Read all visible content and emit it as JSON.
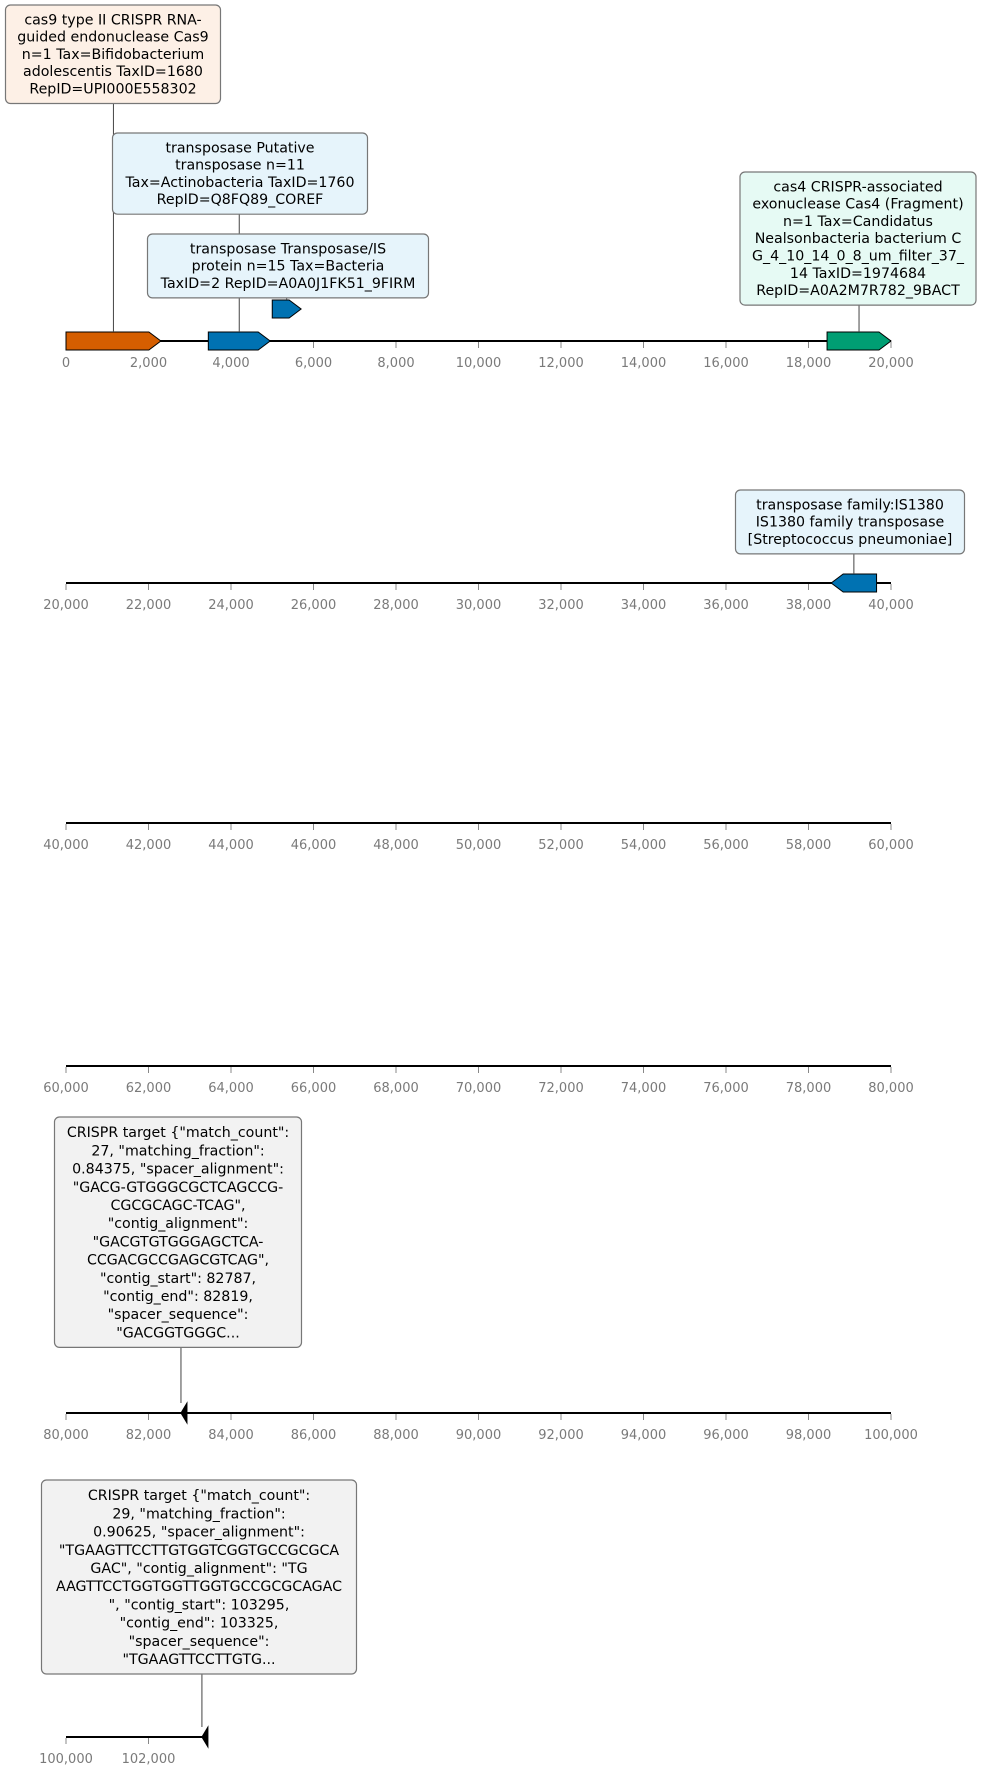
{
  "tracks": [
    {
      "start": 0,
      "end": 20000,
      "ticks": [
        "0",
        "2,000",
        "4,000",
        "6,000",
        "8,000",
        "10,000",
        "12,000",
        "14,000",
        "16,000",
        "18,000",
        "20,000"
      ],
      "features": [
        {
          "id": "cas9",
          "start": 0,
          "end": 2300,
          "strand": "+",
          "color": "#D55E00",
          "label_lines": [
            "cas9 type II CRISPR RNA-",
            "guided endonuclease Cas9",
            "n=1 Tax=Bifidobacterium",
            "adolescentis TaxID=1680",
            "RepID=UPI000E558302"
          ],
          "box_color": "#FDF0E6"
        },
        {
          "id": "transposase-1",
          "start": 3450,
          "end": 4950,
          "strand": "+",
          "color": "#0072B2",
          "label_lines": [
            "transposase Putative",
            "transposase n=11",
            "Tax=Actinobacteria TaxID=1760",
            "RepID=Q8FQ89_COREF"
          ],
          "box_color": "#E6F4FB"
        },
        {
          "id": "transposase-2",
          "start": 5000,
          "end": 5700,
          "strand": "+",
          "color": "#0072B2",
          "raised": true,
          "label_lines": [
            "transposase Transposase/IS",
            "protein n=15 Tax=Bacteria",
            "TaxID=2 RepID=A0A0J1FK51_9FIRM"
          ],
          "box_color": "#E6F4FB"
        },
        {
          "id": "cas4",
          "start": 18450,
          "end": 20000,
          "strand": "+",
          "color": "#009E73",
          "label_lines": [
            "cas4 CRISPR-associated",
            "exonuclease Cas4 (Fragment)",
            "n=1 Tax=Candidatus",
            "Nealsonbacteria bacterium C",
            "G_4_10_14_0_8_um_filter_37_",
            "14 TaxID=1974684",
            "RepID=A0A2M7R782_9BACT"
          ],
          "box_color": "#E6FAF4"
        }
      ]
    },
    {
      "start": 20000,
      "end": 40000,
      "ticks": [
        "20,000",
        "22,000",
        "24,000",
        "26,000",
        "28,000",
        "30,000",
        "32,000",
        "34,000",
        "36,000",
        "38,000",
        "40,000"
      ],
      "features": [
        {
          "id": "transposase-is1380",
          "start": 38550,
          "end": 39650,
          "strand": "-",
          "color": "#0072B2",
          "label_lines": [
            "transposase family:IS1380",
            "IS1380 family transposase",
            "[Streptococcus pneumoniae]"
          ],
          "box_color": "#E6F4FB"
        }
      ]
    },
    {
      "start": 40000,
      "end": 60000,
      "ticks": [
        "40,000",
        "42,000",
        "44,000",
        "46,000",
        "48,000",
        "50,000",
        "52,000",
        "54,000",
        "56,000",
        "58,000",
        "60,000"
      ],
      "features": []
    },
    {
      "start": 60000,
      "end": 80000,
      "ticks": [
        "60,000",
        "62,000",
        "64,000",
        "66,000",
        "68,000",
        "70,000",
        "72,000",
        "74,000",
        "76,000",
        "78,000",
        "80,000"
      ],
      "features": []
    },
    {
      "start": 80000,
      "end": 100000,
      "ticks": [
        "80,000",
        "82,000",
        "84,000",
        "86,000",
        "88,000",
        "90,000",
        "92,000",
        "94,000",
        "96,000",
        "98,000",
        "100,000"
      ],
      "features": [
        {
          "id": "crispr-target-1",
          "start": 82787,
          "end": 82819,
          "strand": "-",
          "color": "#000000",
          "label_lines": [
            "CRISPR target {\"match_count\":",
            "27, \"matching_fraction\":",
            "0.84375, \"spacer_alignment\":",
            "\"GACG-GTGGGCGCTCAGCCG-",
            "CGCGCAGC-TCAG\",",
            "\"contig_alignment\":",
            "\"GACGTGTGGGAGCTCA-",
            "CCGACGCCGAGCGTCAG\",",
            "\"contig_start\": 82787,",
            "\"contig_end\": 82819,",
            "\"spacer_sequence\":",
            "\"GACGGTGGGC..."
          ],
          "box_color": "#F2F2F2"
        }
      ]
    },
    {
      "start": 100000,
      "end": 120000,
      "ticks": [
        "100,000",
        "102,000"
      ],
      "line_end": 103300,
      "features": [
        {
          "id": "crispr-target-2",
          "start": 103295,
          "end": 103325,
          "strand": "-",
          "color": "#000000",
          "label_lines": [
            "CRISPR target {\"match_count\":",
            "29, \"matching_fraction\":",
            "0.90625, \"spacer_alignment\":",
            "\"TGAAGTTCCTTGTGGTCGGTGCCGCGCA",
            "GAC\", \"contig_alignment\": \"TG",
            "AAGTTCCTGGTGGTTGGTGCCGCGCAGAC",
            "\", \"contig_start\": 103295,",
            "\"contig_end\": 103325,",
            "\"spacer_sequence\":",
            "\"TGAAGTTCCTTGTG..."
          ],
          "box_color": "#F2F2F2"
        }
      ]
    }
  ]
}
